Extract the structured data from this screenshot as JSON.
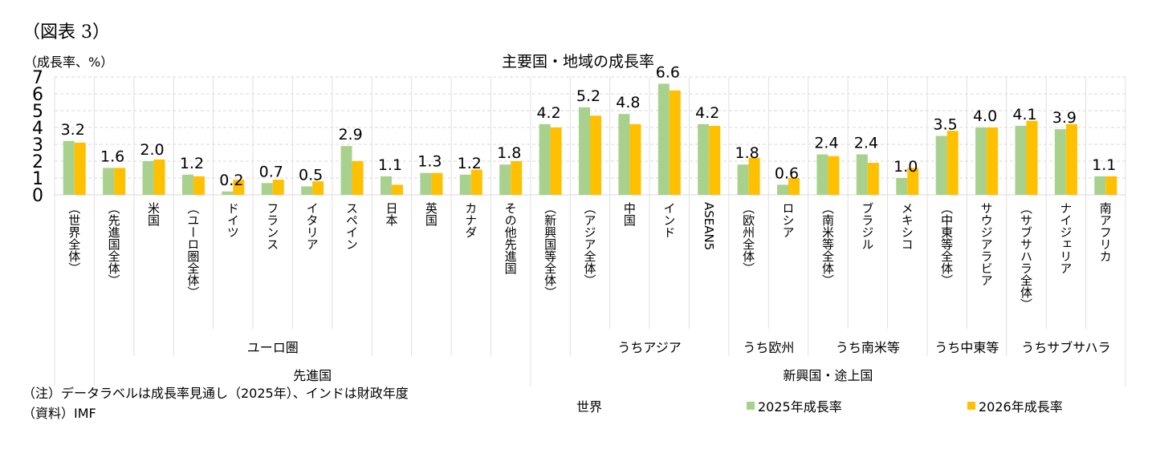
{
  "figure_label": "（図表 3）",
  "chart_data": {
    "type": "bar",
    "title": "主要国・地域の成長率",
    "ylabel": "（成長率、%）",
    "ylim": [
      0,
      7
    ],
    "yticks": [
      "0",
      "1",
      "2",
      "3",
      "4",
      "5",
      "6",
      "7"
    ],
    "grid": true,
    "legend_position": "bottom-right",
    "categories": [
      "（世界全体）",
      "（先進国全体）",
      "米国",
      "（ユーロ圏全体）",
      "ドイツ",
      "フランス",
      "イタリア",
      "スペイン",
      "日本",
      "英国",
      "カナダ",
      "その他先進国",
      "（新興国等全体）",
      "（アジア全体）",
      "中国",
      "インド",
      "ASEAN5",
      "（欧州全体）",
      "ロシア",
      "（南米等全体）",
      "ブラジル",
      "メキシコ",
      "（中東等全体）",
      "サウジアラビア",
      "（サブサハラ全体）",
      "ナイジェリア",
      "南アフリカ"
    ],
    "series": [
      {
        "name": "2025年成長率",
        "color": "#A9D18E",
        "values": [
          3.2,
          1.6,
          2.0,
          1.2,
          0.2,
          0.7,
          0.5,
          2.9,
          1.1,
          1.3,
          1.2,
          1.8,
          4.2,
          5.2,
          4.8,
          6.6,
          4.2,
          1.8,
          0.6,
          2.4,
          2.4,
          1.0,
          3.5,
          4.0,
          4.1,
          3.9,
          1.1
        ]
      },
      {
        "name": "2026年成長率",
        "color": "#FFC000",
        "values": [
          3.1,
          1.6,
          2.1,
          1.1,
          0.9,
          0.9,
          0.8,
          2.0,
          0.6,
          1.3,
          1.5,
          2.0,
          4.0,
          4.7,
          4.2,
          6.2,
          4.1,
          2.2,
          1.0,
          2.3,
          1.9,
          1.6,
          3.8,
          4.0,
          4.4,
          4.2,
          1.1
        ]
      }
    ],
    "data_labels": [
      "3.2",
      "1.6",
      "2.0",
      "1.2",
      "0.2",
      "0.7",
      "0.5",
      "2.9",
      "1.1",
      "1.3",
      "1.2",
      "1.8",
      "4.2",
      "5.2",
      "4.8",
      "6.6",
      "4.2",
      "1.8",
      "0.6",
      "2.4",
      "2.4",
      "1.0",
      "3.5",
      "4.0",
      "4.1",
      "3.9",
      "1.1"
    ],
    "groups_level1": [
      {
        "label": "ユーロ圏",
        "from": 3,
        "to": 7
      },
      {
        "label": "うちアジア",
        "from": 13,
        "to": 16
      },
      {
        "label": "うち欧州",
        "from": 17,
        "to": 18
      },
      {
        "label": "うち南米等",
        "from": 19,
        "to": 21
      },
      {
        "label": "うち中東等",
        "from": 22,
        "to": 23
      },
      {
        "label": "うちサブサハラ",
        "from": 24,
        "to": 26
      }
    ],
    "groups_level2": [
      {
        "label": "先進国",
        "from": 1,
        "to": 11
      },
      {
        "label": "新興国・途上国",
        "from": 12,
        "to": 26
      }
    ],
    "group_level3": "世界"
  },
  "note": "（注）データラベルは成長率見通し（2025年）、インドは財政年度",
  "source": "（資料）IMF"
}
